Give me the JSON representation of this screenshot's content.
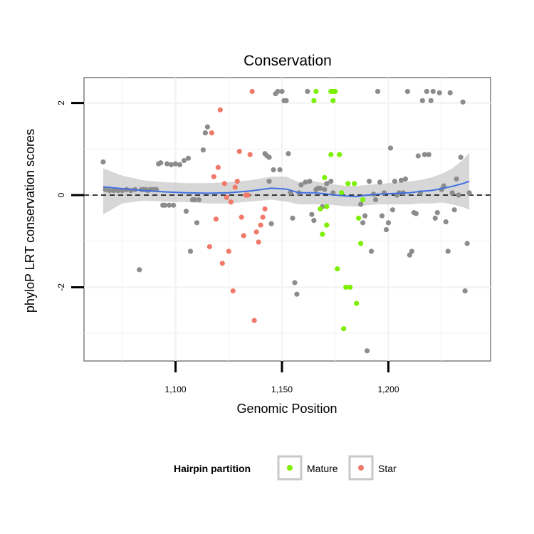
{
  "chart_data": {
    "type": "scatter",
    "title": "Conservation",
    "xlabel": "Genomic Position",
    "ylabel": "phyloP LRT conservation scores",
    "xlim": [
      1057,
      1248
    ],
    "ylim": [
      -3.6,
      2.55
    ],
    "x_ticks": [
      1100,
      1150,
      1200
    ],
    "x_tick_labels": [
      "1,100",
      "1,150",
      "1,200"
    ],
    "y_ticks": [
      -2,
      0,
      2
    ],
    "y_tick_labels": [
      "-2",
      "0",
      "2"
    ],
    "grid": true,
    "reference_line": {
      "y": 0,
      "style": "dashed"
    },
    "legend": {
      "title": "Hairpin partition",
      "position": "bottom",
      "entries": [
        {
          "label": "Mature",
          "color": "#7cf000"
        },
        {
          "label": "Star",
          "color": "#f07a6a"
        }
      ]
    },
    "colors": {
      "other": "#8c8c8c",
      "smooth": "#3f6fe0",
      "ribbon": "#bdbdbd"
    },
    "series": [
      {
        "name": "Other",
        "points": [
          [
            1066,
            0.72
          ],
          [
            1067,
            0.12
          ],
          [
            1069,
            0.1
          ],
          [
            1071,
            0.1
          ],
          [
            1073,
            0.1
          ],
          [
            1075,
            0.1
          ],
          [
            1077,
            0.12
          ],
          [
            1079,
            0.1
          ],
          [
            1081,
            0.12
          ],
          [
            1083,
            -1.62
          ],
          [
            1084,
            0.12
          ],
          [
            1085,
            0.12
          ],
          [
            1086,
            0.12
          ],
          [
            1087,
            0.1
          ],
          [
            1088,
            0.12
          ],
          [
            1089,
            0.12
          ],
          [
            1090,
            0.12
          ],
          [
            1091,
            0.12
          ],
          [
            1092,
            0.68
          ],
          [
            1093,
            0.7
          ],
          [
            1094,
            -0.22
          ],
          [
            1095,
            -0.22
          ],
          [
            1096,
            0.68
          ],
          [
            1097,
            -0.22
          ],
          [
            1098,
            0.66
          ],
          [
            1099,
            -0.22
          ],
          [
            1100,
            0.68
          ],
          [
            1102,
            0.66
          ],
          [
            1104,
            0.75
          ],
          [
            1105,
            -0.35
          ],
          [
            1106,
            0.8
          ],
          [
            1107,
            -1.22
          ],
          [
            1108,
            -0.1
          ],
          [
            1109,
            -0.1
          ],
          [
            1110,
            -0.6
          ],
          [
            1111,
            -0.1
          ],
          [
            1113,
            0.98
          ],
          [
            1114,
            1.35
          ],
          [
            1115,
            1.48
          ],
          [
            1147,
            2.2
          ],
          [
            1148,
            2.25
          ],
          [
            1149,
            0.55
          ],
          [
            1150,
            2.25
          ],
          [
            1151,
            2.05
          ],
          [
            1152,
            2.05
          ],
          [
            1153,
            0.9
          ],
          [
            1154,
            0.05
          ],
          [
            1155,
            -0.5
          ],
          [
            1142,
            0.9
          ],
          [
            1143,
            0.85
          ],
          [
            1144,
            0.82
          ],
          [
            1146,
            0.55
          ],
          [
            1145,
            -0.62
          ],
          [
            1144,
            0.3
          ],
          [
            1156,
            -1.9
          ],
          [
            1157,
            -2.15
          ],
          [
            1158,
            0.05
          ],
          [
            1159,
            0.22
          ],
          [
            1161,
            0.28
          ],
          [
            1162,
            2.25
          ],
          [
            1163,
            0.3
          ],
          [
            1164,
            -0.42
          ],
          [
            1165,
            -0.55
          ],
          [
            1166,
            0.12
          ],
          [
            1167,
            0.15
          ],
          [
            1168,
            0.15
          ],
          [
            1169,
            -0.25
          ],
          [
            1170,
            0.12
          ],
          [
            1171,
            0.25
          ],
          [
            1173,
            0.3
          ],
          [
            1174,
            0.05
          ],
          [
            1187,
            -0.2
          ],
          [
            1188,
            -0.6
          ],
          [
            1189,
            -0.45
          ],
          [
            1190,
            -3.38
          ],
          [
            1191,
            0.3
          ],
          [
            1192,
            -1.22
          ],
          [
            1193,
            0.02
          ],
          [
            1194,
            -0.1
          ],
          [
            1195,
            2.25
          ],
          [
            1196,
            0.28
          ],
          [
            1197,
            -0.45
          ],
          [
            1198,
            0.05
          ],
          [
            1199,
            -0.75
          ],
          [
            1200,
            -0.6
          ],
          [
            1201,
            1.02
          ],
          [
            1202,
            -0.32
          ],
          [
            1203,
            0.3
          ],
          [
            1204,
            0.0
          ],
          [
            1205,
            0.05
          ],
          [
            1206,
            0.32
          ],
          [
            1207,
            0.05
          ],
          [
            1208,
            0.35
          ],
          [
            1209,
            2.25
          ],
          [
            1210,
            -1.3
          ],
          [
            1211,
            -1.22
          ],
          [
            1212,
            -0.38
          ],
          [
            1213,
            -0.4
          ],
          [
            1214,
            0.85
          ],
          [
            1215,
            0.05
          ],
          [
            1216,
            2.05
          ],
          [
            1217,
            0.88
          ],
          [
            1218,
            2.25
          ],
          [
            1219,
            0.88
          ],
          [
            1220,
            2.05
          ],
          [
            1221,
            2.25
          ],
          [
            1222,
            -0.5
          ],
          [
            1223,
            -0.38
          ],
          [
            1224,
            2.22
          ],
          [
            1225,
            0.12
          ],
          [
            1226,
            0.2
          ],
          [
            1227,
            -0.58
          ],
          [
            1228,
            -1.22
          ],
          [
            1229,
            2.22
          ],
          [
            1230,
            0.05
          ],
          [
            1231,
            -0.32
          ],
          [
            1232,
            0.35
          ],
          [
            1233,
            0.0
          ],
          [
            1234,
            0.82
          ],
          [
            1235,
            2.02
          ],
          [
            1236,
            -2.08
          ],
          [
            1237,
            -1.05
          ],
          [
            1238,
            0.05
          ]
        ]
      },
      {
        "name": "Mature",
        "points": [
          [
            1165,
            2.05
          ],
          [
            1166,
            2.25
          ],
          [
            1168,
            -0.3
          ],
          [
            1169,
            -0.85
          ],
          [
            1170,
            0.38
          ],
          [
            1171,
            -0.65
          ],
          [
            1171,
            -0.25
          ],
          [
            1173,
            2.25
          ],
          [
            1174,
            2.25
          ],
          [
            1173,
            0.88
          ],
          [
            1174,
            2.05
          ],
          [
            1175,
            2.25
          ],
          [
            1176,
            -1.6
          ],
          [
            1177,
            0.88
          ],
          [
            1178,
            0.05
          ],
          [
            1179,
            -2.9
          ],
          [
            1180,
            -2.0
          ],
          [
            1181,
            0.25
          ],
          [
            1182,
            -2.0
          ],
          [
            1184,
            0.25
          ],
          [
            1185,
            -2.35
          ],
          [
            1186,
            -0.5
          ],
          [
            1187,
            -1.05
          ],
          [
            1188,
            -0.1
          ]
        ]
      },
      {
        "name": "Star",
        "points": [
          [
            1116,
            -1.12
          ],
          [
            1117,
            1.35
          ],
          [
            1118,
            0.4
          ],
          [
            1119,
            -0.52
          ],
          [
            1120,
            0.6
          ],
          [
            1121,
            1.85
          ],
          [
            1122,
            -1.48
          ],
          [
            1123,
            0.25
          ],
          [
            1124,
            -0.05
          ],
          [
            1125,
            -1.22
          ],
          [
            1126,
            -0.15
          ],
          [
            1127,
            -2.08
          ],
          [
            1128,
            0.17
          ],
          [
            1129,
            0.3
          ],
          [
            1130,
            0.95
          ],
          [
            1131,
            -0.48
          ],
          [
            1132,
            -0.88
          ],
          [
            1133,
            0.0
          ],
          [
            1134,
            0.0
          ],
          [
            1135,
            0.88
          ],
          [
            1136,
            2.25
          ],
          [
            1137,
            -2.72
          ],
          [
            1138,
            -0.8
          ],
          [
            1139,
            -1.02
          ],
          [
            1140,
            -0.65
          ],
          [
            1141,
            -0.48
          ],
          [
            1142,
            -0.3
          ]
        ]
      }
    ],
    "smooth_line": {
      "x": [
        1066,
        1075,
        1085,
        1095,
        1105,
        1115,
        1125,
        1135,
        1145,
        1152,
        1158,
        1165,
        1170,
        1175,
        1180,
        1185,
        1190,
        1195,
        1200,
        1205,
        1210,
        1215,
        1220,
        1225,
        1230,
        1235,
        1238
      ],
      "y": [
        0.18,
        0.14,
        0.1,
        0.07,
        0.05,
        0.04,
        0.05,
        0.09,
        0.15,
        0.13,
        0.05,
        0.05,
        0.03,
        0.0,
        -0.02,
        -0.03,
        0.0,
        0.02,
        0.03,
        0.04,
        0.05,
        0.08,
        0.1,
        0.14,
        0.19,
        0.25,
        0.3
      ],
      "upper": [
        0.58,
        0.42,
        0.32,
        0.28,
        0.26,
        0.26,
        0.28,
        0.32,
        0.4,
        0.4,
        0.28,
        0.3,
        0.26,
        0.23,
        0.2,
        0.2,
        0.22,
        0.24,
        0.26,
        0.28,
        0.3,
        0.33,
        0.38,
        0.46,
        0.58,
        0.76,
        0.92
      ],
      "lower": [
        -0.42,
        -0.18,
        -0.12,
        -0.14,
        -0.15,
        -0.18,
        -0.18,
        -0.14,
        -0.1,
        -0.14,
        -0.2,
        -0.2,
        -0.2,
        -0.22,
        -0.24,
        -0.25,
        -0.22,
        -0.2,
        -0.2,
        -0.2,
        -0.2,
        -0.18,
        -0.18,
        -0.16,
        -0.2,
        -0.26,
        -0.32
      ]
    }
  }
}
